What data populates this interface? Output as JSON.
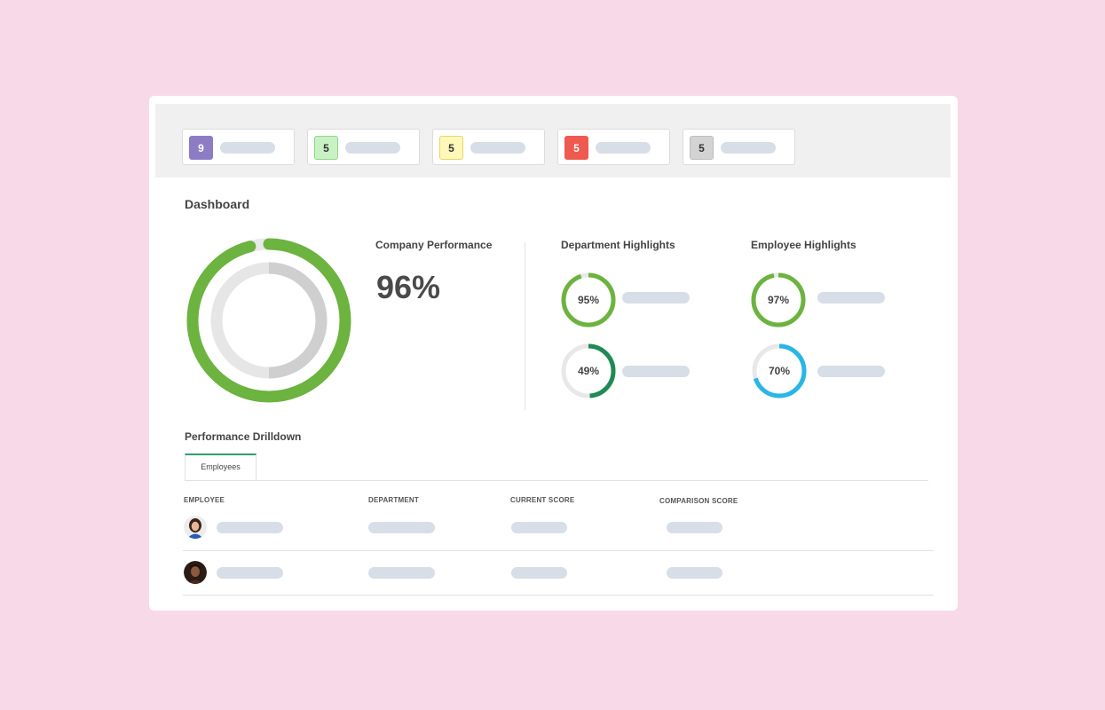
{
  "status_chips": [
    {
      "count": "9",
      "bg": "#8d7cc4",
      "border": "#8d7cc4",
      "fg": "#ffffff"
    },
    {
      "count": "5",
      "bg": "#c9f2c4",
      "border": "#8fd48a",
      "fg": "#333333"
    },
    {
      "count": "5",
      "bg": "#fff8b8",
      "border": "#e3d66a",
      "fg": "#333333"
    },
    {
      "count": "5",
      "bg": "#ee5a4f",
      "border": "#ee5a4f",
      "fg": "#ffffff"
    },
    {
      "count": "5",
      "bg": "#d3d3d3",
      "border": "#bdbdbd",
      "fg": "#333333"
    }
  ],
  "dashboard": {
    "title": "Dashboard",
    "company": {
      "label": "Company Performance",
      "value": "96%",
      "progress": 0.96,
      "color": "#6cb33f"
    },
    "department": {
      "label": "Department Highlights",
      "items": [
        {
          "value": "95%",
          "progress": 0.95,
          "color": "#6cb33f"
        },
        {
          "value": "49%",
          "progress": 0.49,
          "color": "#1f8a55"
        }
      ]
    },
    "employee": {
      "label": "Employee Highlights",
      "items": [
        {
          "value": "97%",
          "progress": 0.97,
          "color": "#6cb33f"
        },
        {
          "value": "70%",
          "progress": 0.7,
          "color": "#29b6e6"
        }
      ]
    }
  },
  "drilldown": {
    "title": "Performance Drilldown",
    "tab": "Employees",
    "columns": [
      "EMPLOYEE",
      "DEPARTMENT",
      "CURRENT SCORE",
      "COMPARISON SCORE"
    ],
    "rows": [
      {
        "avatar": "avatar-woman"
      },
      {
        "avatar": "avatar-man"
      }
    ]
  }
}
